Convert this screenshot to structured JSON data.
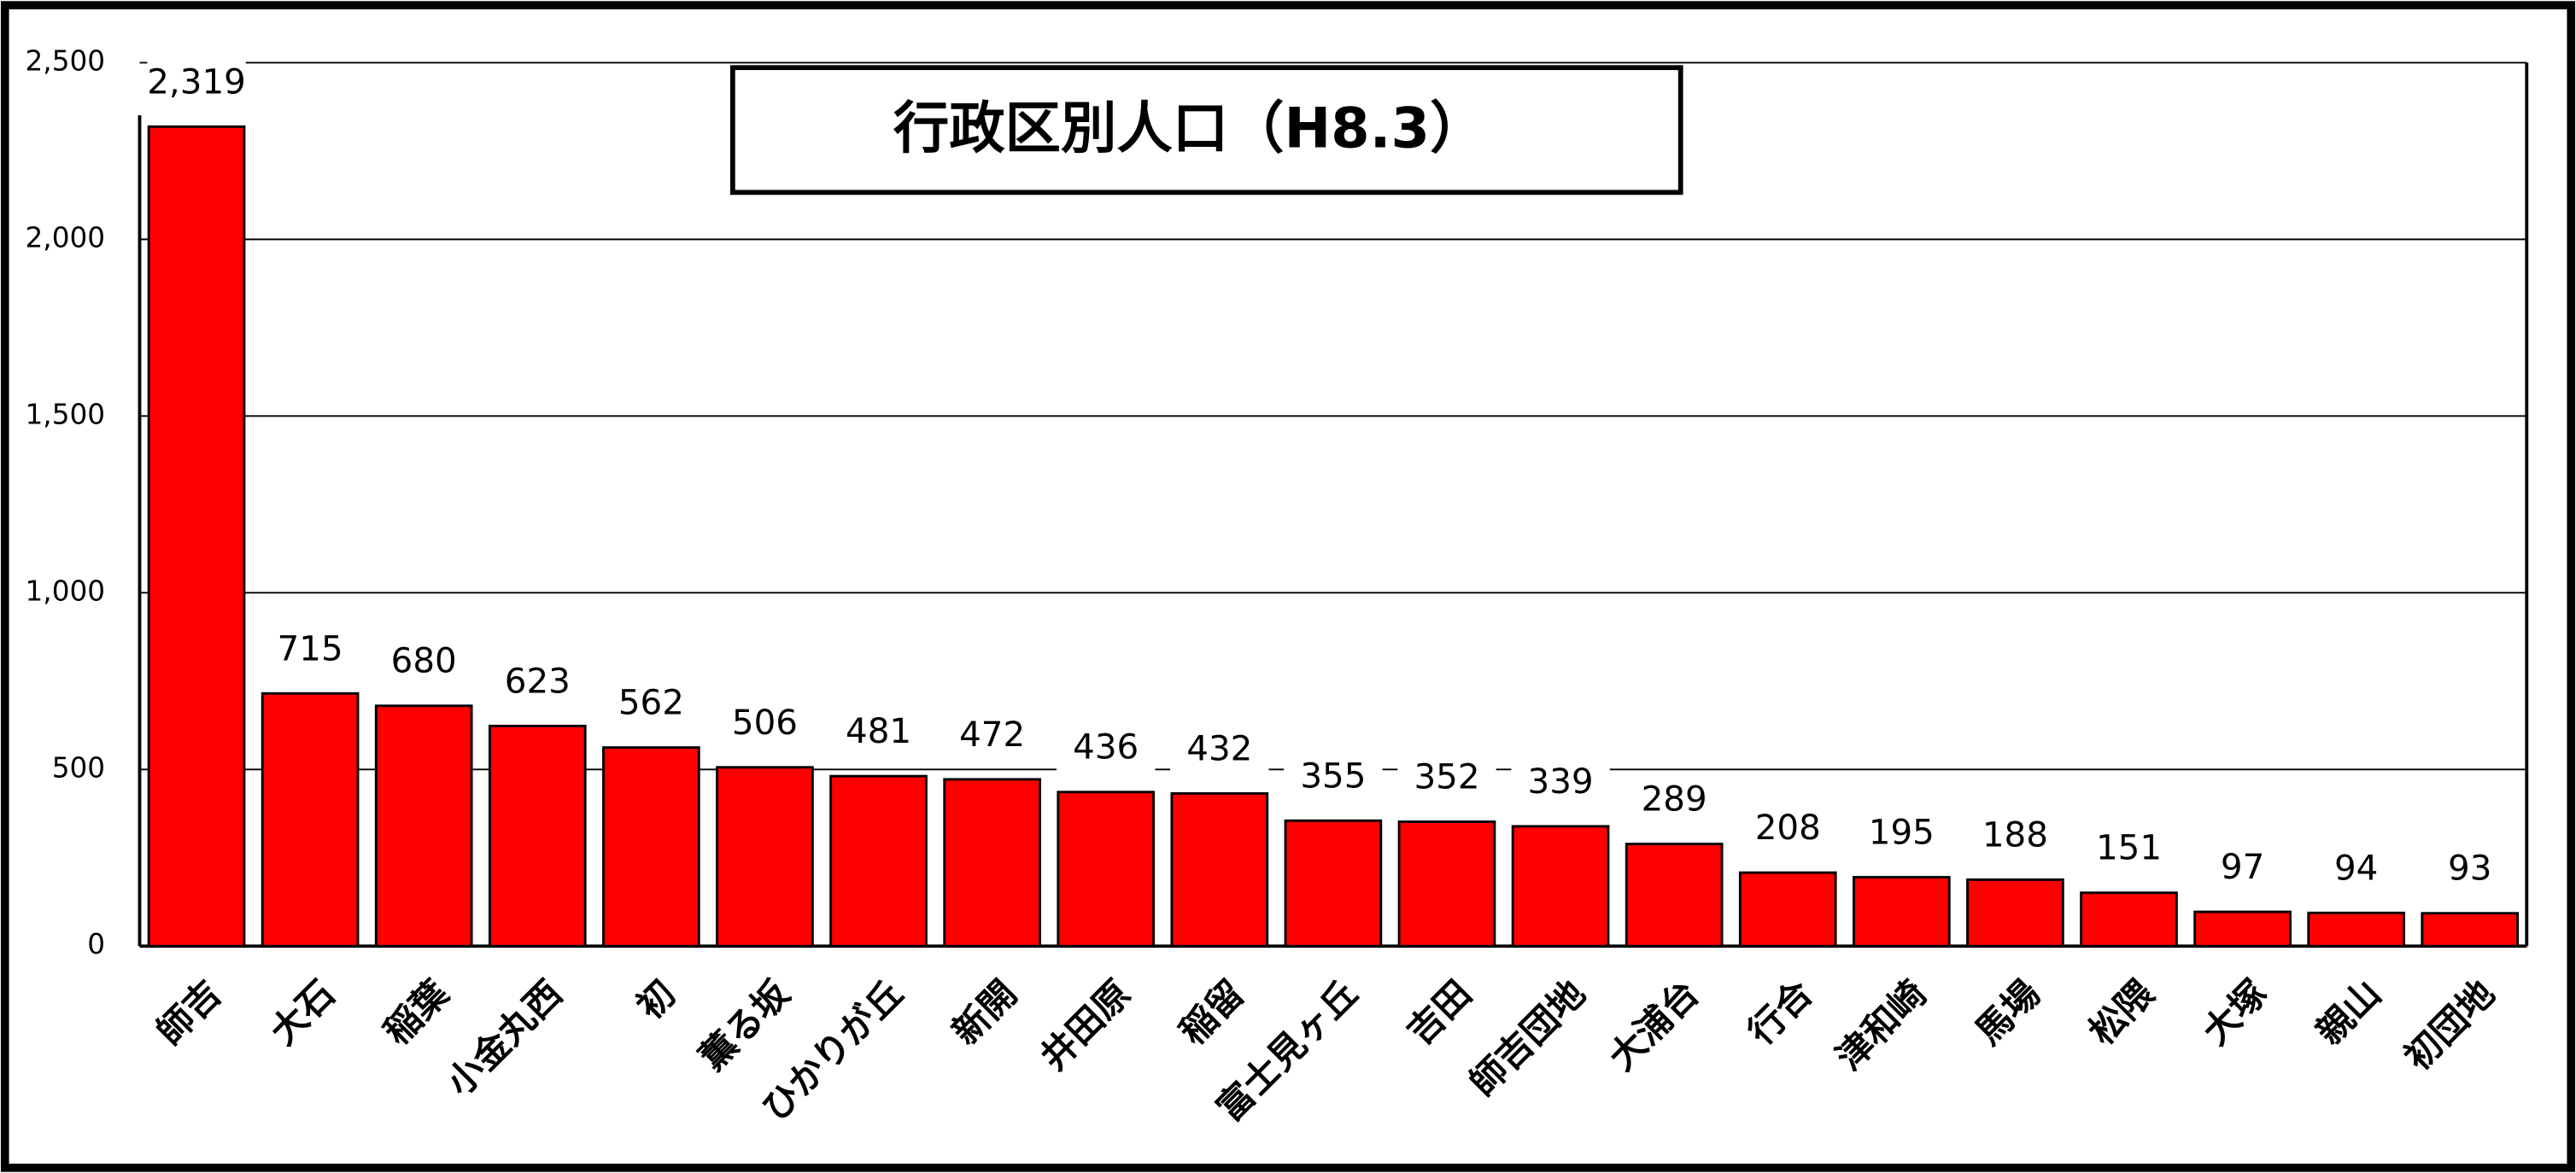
{
  "chart_data": {
    "type": "bar",
    "title": "行政区別人口（H8.3）",
    "categories": [
      "師吉",
      "大石",
      "稲葉",
      "小金丸西",
      "初",
      "薫る坂",
      "ひかりが丘",
      "新開",
      "井田原",
      "稲留",
      "富士見ヶ丘",
      "吉田",
      "師吉団地",
      "大浦台",
      "行合",
      "津和崎",
      "馬場",
      "松隈",
      "大塚",
      "親山",
      "初団地"
    ],
    "values": [
      2319,
      715,
      680,
      623,
      562,
      506,
      481,
      472,
      436,
      432,
      355,
      352,
      339,
      289,
      208,
      195,
      188,
      151,
      97,
      94,
      93
    ],
    "value_labels": [
      "2,319",
      "715",
      "680",
      "623",
      "562",
      "506",
      "481",
      "472",
      "436",
      "432",
      "355",
      "352",
      "339",
      "289",
      "208",
      "195",
      "188",
      "151",
      "97",
      "94",
      "93"
    ],
    "color": "#ff0000",
    "ylim": [
      0,
      2500
    ],
    "yticks": [
      0,
      500,
      {
        "value": 1000,
        "label": "1,000"
      },
      {
        "value": 1500,
        "label": "1,500"
      },
      {
        "value": 2000,
        "label": "2,000"
      },
      {
        "value": 2500,
        "label": "2,500"
      }
    ],
    "grid": true
  }
}
